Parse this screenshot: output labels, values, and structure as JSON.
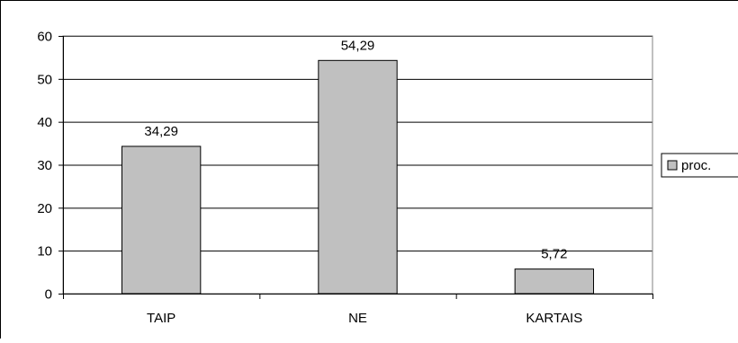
{
  "chart_data": {
    "type": "bar",
    "categories": [
      "TAIP",
      "NE",
      "KARTAIS"
    ],
    "series": [
      {
        "name": "proc.",
        "values": [
          34.29,
          54.29,
          5.72
        ],
        "labels": [
          "34,29",
          "54,29",
          "5,72"
        ]
      }
    ],
    "ylim": [
      0,
      60
    ],
    "yticks": [
      0,
      10,
      20,
      30,
      40,
      50,
      60
    ],
    "grid": true,
    "legend": "right",
    "title": "",
    "xlabel": "",
    "ylabel": "",
    "colors": {
      "bar_fill": "#c0c0c0",
      "bar_stroke": "#000000",
      "grid": "#000000",
      "axis": "#000000",
      "plot_border": "#808080",
      "frame": "#000000"
    }
  }
}
